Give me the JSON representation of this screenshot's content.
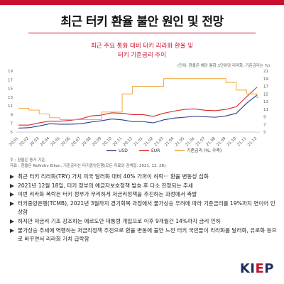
{
  "header": {
    "title": "최근 터키 환율 불안 원인 및 전망",
    "subtitle_line1": "최근 주요 통화 대비 터키 리라화 환율 및",
    "subtitle_line2": "터키 기준금리 추이",
    "accent_color": "#c8102e"
  },
  "chart_data": {
    "type": "line",
    "unit_note": "(단위: 환율은 해당 통화 1단위당 리라화, 기준금리는 %)",
    "x": [
      "20.01",
      "20.02",
      "20.03",
      "20.04",
      "20.05",
      "20.06",
      "20.07",
      "20.08",
      "20.09",
      "20.10",
      "20.11",
      "20.12",
      "21.01",
      "21.02",
      "21.03",
      "21.04",
      "21.05",
      "21.06",
      "21.07",
      "21.08",
      "21.09",
      "21.10",
      "21.11",
      "21.12"
    ],
    "x_tick_labels": [
      "20.01",
      "20.02",
      "20.03",
      "20.04",
      "20.05",
      "20.06",
      "20.07",
      "20.08",
      "20.09",
      "20.10",
      "20.11",
      "20.12",
      "21.01",
      "21.02",
      "21.03",
      "21.04",
      "21.05",
      "21.06",
      "21.07",
      "21.08",
      "21.09",
      "21.10",
      "21.11",
      "21.12"
    ],
    "left_axis": {
      "ylim": [
        5,
        19
      ],
      "ticks": [
        5,
        7,
        9,
        11,
        13,
        15,
        17,
        19
      ]
    },
    "right_axis": {
      "ylim": [
        5,
        21
      ],
      "ticks": [
        5,
        7,
        9,
        11,
        13,
        15,
        17,
        19,
        21
      ]
    },
    "series": [
      {
        "name": "USD",
        "axis": "left",
        "color": "#2b3a8c",
        "values": [
          5.9,
          6.0,
          6.4,
          6.9,
          6.8,
          6.8,
          6.9,
          7.3,
          7.6,
          8.0,
          7.8,
          7.4,
          7.4,
          7.1,
          7.8,
          8.2,
          8.4,
          8.6,
          8.5,
          8.4,
          8.7,
          9.3,
          11.6,
          13.5
        ]
      },
      {
        "name": "EUR",
        "axis": "left",
        "color": "#d9262c",
        "values": [
          6.6,
          6.6,
          7.1,
          7.5,
          7.5,
          7.7,
          8.0,
          8.7,
          8.9,
          9.4,
          9.3,
          9.0,
          9.0,
          8.6,
          9.3,
          9.8,
          10.2,
          10.3,
          10.0,
          9.9,
          10.2,
          10.8,
          13.1,
          15.3
        ]
      },
      {
        "name": "기준금리 (%, 우축)",
        "axis": "right",
        "color": "#f0a030",
        "step": true,
        "values": [
          11.25,
          10.75,
          9.75,
          8.75,
          8.25,
          8.25,
          8.25,
          8.25,
          10.25,
          10.25,
          15.0,
          17.0,
          17.0,
          17.0,
          19.0,
          19.0,
          19.0,
          19.0,
          19.0,
          19.0,
          18.0,
          16.0,
          15.0,
          14.0
        ]
      }
    ],
    "grid": false,
    "legend_position": "bottom"
  },
  "notes": {
    "note1": "주 : 환율은 종가 기준.",
    "note2": "자료 : 환율은 Refinitiv Eikon, 기준금리는 터키중앙은행(모든 자료의 검색일: 2021. 12. 28)."
  },
  "bullets": [
    "최근 터키 리라화(TRY) 가치 미국 달러화 대비 40% 가까이 하락‧‧‧ 환율 변동성 심화",
    "2021년 12월 18일, 터키 정부의 예금자보호정책 발효 후 다소 진정되는 추세",
    "이번 리라화 폭락은 터키 정부가 무리하게 저금리정책을 추진하는 과정에서 촉발",
    "터키중앙은행(TCMB), 2021년 3월까지 경기회복 과정에서 물가상승 우려에 따라 기준금리를 19%까지 연이어 인상함",
    "하지만 저금리 기조 강조하는 에르도안 대통령 개입으로 이후 9개월간 14%까지 금리 인하",
    "물가상승 추세에 역행하는 저금리정책 추진으로 환율 변동에 불안 느낀 터키 국민들이 리라화를 달러화, 유로화 등으로 바꾸면서 리라화 가치 급락함"
  ],
  "logo": {
    "text_main": "KI",
    "text_accent": "E",
    "text_end": "P"
  }
}
